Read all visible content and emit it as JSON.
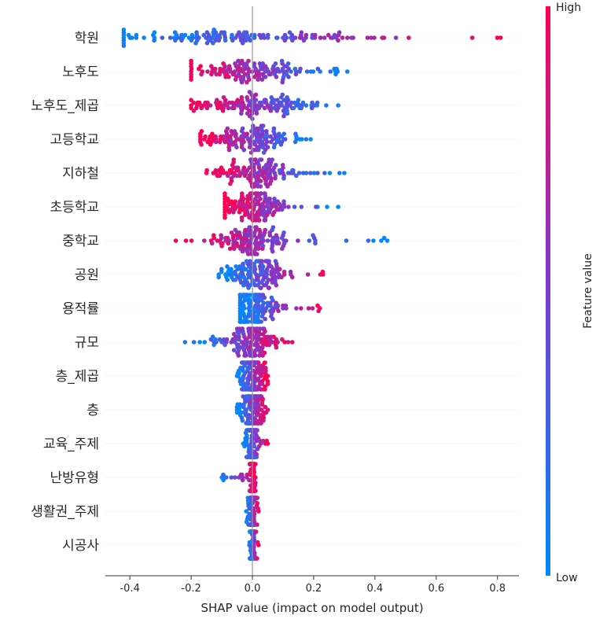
{
  "chart_data": {
    "type": "scatter",
    "subtype": "shap-beeswarm",
    "xlabel": "SHAP value (impact on model output)",
    "xlim": [
      -0.48,
      0.87
    ],
    "xticks": [
      -0.4,
      -0.2,
      0.0,
      0.2,
      0.4,
      0.6,
      0.8
    ],
    "xtick_labels": [
      "-0.4",
      "-0.2",
      "0.0",
      "0.2",
      "0.4",
      "0.6",
      "0.8"
    ],
    "grid": false,
    "colorbar": {
      "label": "Feature value",
      "high_label": "High",
      "low_label": "Low",
      "low_color": "#008afb",
      "high_color": "#ff0052"
    },
    "features": [
      {
        "name": "학원",
        "min": -0.42,
        "max": 0.81,
        "center": -0.05,
        "spread": 0.22,
        "trend": 1
      },
      {
        "name": "노후도",
        "min": -0.2,
        "max": 0.31,
        "center": -0.01,
        "spread": 0.1,
        "trend": -1
      },
      {
        "name": "노후도_제곱",
        "min": -0.2,
        "max": 0.28,
        "center": 0.0,
        "spread": 0.1,
        "trend": -1
      },
      {
        "name": "고등학교",
        "min": -0.17,
        "max": 0.19,
        "center": -0.01,
        "spread": 0.07,
        "trend": -1
      },
      {
        "name": "지하철",
        "min": -0.15,
        "max": 0.3,
        "center": 0.0,
        "spread": 0.06,
        "trend": -1
      },
      {
        "name": "초등학교",
        "min": -0.09,
        "max": 0.28,
        "center": 0.0,
        "spread": 0.05,
        "trend": -1
      },
      {
        "name": "중학교",
        "min": -0.25,
        "max": 0.44,
        "center": 0.0,
        "spread": 0.06,
        "trend": -1
      },
      {
        "name": "공원",
        "min": -0.11,
        "max": 0.23,
        "center": 0.0,
        "spread": 0.05,
        "trend": 1
      },
      {
        "name": "용적률",
        "min": -0.04,
        "max": 0.22,
        "center": 0.0,
        "spread": 0.04,
        "trend": 1
      },
      {
        "name": "규모",
        "min": -0.22,
        "max": 0.13,
        "center": 0.0,
        "spread": 0.04,
        "trend": 1
      },
      {
        "name": "층_제곱",
        "min": -0.05,
        "max": 0.05,
        "center": 0.0,
        "spread": 0.02,
        "trend": 1
      },
      {
        "name": "층",
        "min": -0.05,
        "max": 0.05,
        "center": 0.0,
        "spread": 0.02,
        "trend": 1
      },
      {
        "name": "교육_주제",
        "min": -0.03,
        "max": 0.05,
        "center": 0.0,
        "spread": 0.01,
        "trend": 1
      },
      {
        "name": "난방유형",
        "min": -0.1,
        "max": 0.01,
        "center": 0.0,
        "spread": 0.005,
        "trend": 1
      },
      {
        "name": "생활권_주제",
        "min": -0.02,
        "max": 0.02,
        "center": 0.0,
        "spread": 0.005,
        "trend": 1
      },
      {
        "name": "시공사",
        "min": -0.01,
        "max": 0.02,
        "center": 0.0,
        "spread": 0.004,
        "trend": 1
      }
    ]
  }
}
